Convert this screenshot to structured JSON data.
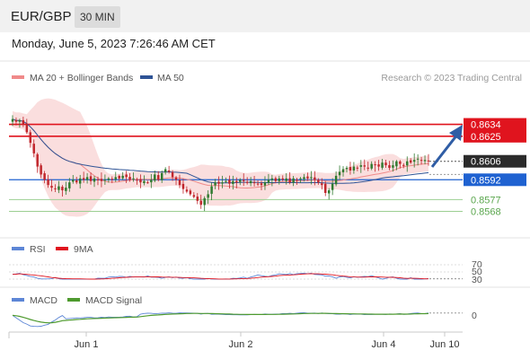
{
  "header": {
    "pair": "EUR/GBP",
    "timeframe": "30 MIN"
  },
  "datetime": "Monday, June 5, 2023 7:26:46 AM CET",
  "legend": {
    "ma": "MA 20 + Bollinger Bands",
    "ma50": "MA 50",
    "credit": "Research © 2023 Trading Central",
    "rsi": "RSI",
    "rsi_ma": "9MA",
    "macd": "MACD",
    "macd_signal": "MACD Signal"
  },
  "colors": {
    "up": "#2f7a2f",
    "down": "#c0262c",
    "red_level": "#e0141e",
    "blue_level": "#1f62d1",
    "green_level": "#5aa64d",
    "ma20": "#f08a8a",
    "ma50": "#2f5496",
    "band": "#f9d8d8",
    "arrow": "#2f5da5",
    "rsi": "#5d86d6",
    "macd": "#5d86d6",
    "macd_signal": "#4e9a2e"
  },
  "chart_data": [
    {
      "type": "candlestick",
      "ylim": [
        0.855,
        0.8648
      ],
      "x_ticks": [
        "Jun 1",
        "Jun 2",
        "Jun 4",
        "Jun 10"
      ],
      "levels": [
        {
          "value": "0.8634",
          "kind": "resistance",
          "color": "#e0141e"
        },
        {
          "value": "0.8625",
          "kind": "resistance",
          "color": "#e0141e"
        },
        {
          "value": "0.8606",
          "kind": "last",
          "color": "#222222"
        },
        {
          "value": "0.8592",
          "kind": "pivot",
          "color": "#1f62d1"
        },
        {
          "value": "0.8577",
          "kind": "support",
          "color": "#5aa64d"
        },
        {
          "value": "0.8568",
          "kind": "support",
          "color": "#5aa64d"
        }
      ],
      "close": [
        0.8638,
        0.8636,
        0.8637,
        0.8634,
        0.8628,
        0.862,
        0.8612,
        0.8602,
        0.8596,
        0.8592,
        0.8588,
        0.8586,
        0.8585,
        0.8587,
        0.8584,
        0.8586,
        0.859,
        0.8592,
        0.859,
        0.8593,
        0.8592,
        0.8594,
        0.8591,
        0.8593,
        0.8592,
        0.8591,
        0.8592,
        0.8593,
        0.8592,
        0.8594,
        0.8593,
        0.8595,
        0.8594,
        0.8592,
        0.8593,
        0.8592,
        0.859,
        0.8591,
        0.859,
        0.8592,
        0.8596,
        0.8592,
        0.8597,
        0.86,
        0.8598,
        0.8594,
        0.8592,
        0.8588,
        0.8585,
        0.8583,
        0.8581,
        0.8579,
        0.8576,
        0.8573,
        0.8578,
        0.8581,
        0.8587,
        0.859,
        0.8589,
        0.859,
        0.8591,
        0.8589,
        0.8591,
        0.859,
        0.8592,
        0.8591,
        0.859,
        0.8591,
        0.859,
        0.8589,
        0.8588,
        0.859,
        0.8592,
        0.8593,
        0.8591,
        0.8593,
        0.8592,
        0.8593,
        0.859,
        0.8593,
        0.8592,
        0.8593,
        0.8594,
        0.8593,
        0.8594,
        0.8592,
        0.859,
        0.8588,
        0.8582,
        0.8584,
        0.8589,
        0.8595,
        0.8598,
        0.86,
        0.8601,
        0.8599,
        0.8602,
        0.8601,
        0.8603,
        0.8602,
        0.8601,
        0.8604,
        0.8603,
        0.8602,
        0.8605,
        0.8603,
        0.8601,
        0.8603,
        0.8606,
        0.8604,
        0.8603,
        0.8606,
        0.8605,
        0.8607,
        0.8608,
        0.8607,
        0.8607,
        0.8606
      ],
      "series": [
        {
          "name": "MA 20 + Bollinger Bands",
          "color": "#f08a8a"
        },
        {
          "name": "MA 50",
          "color": "#2f5496"
        }
      ]
    },
    {
      "type": "line",
      "title": "RSI",
      "y_ticks": [
        "70",
        "50",
        "30"
      ],
      "series": [
        {
          "name": "RSI"
        },
        {
          "name": "9MA"
        }
      ]
    },
    {
      "type": "line",
      "title": "MACD",
      "y_ticks": [
        "0"
      ],
      "series": [
        {
          "name": "MACD"
        },
        {
          "name": "MACD Signal"
        }
      ]
    }
  ]
}
